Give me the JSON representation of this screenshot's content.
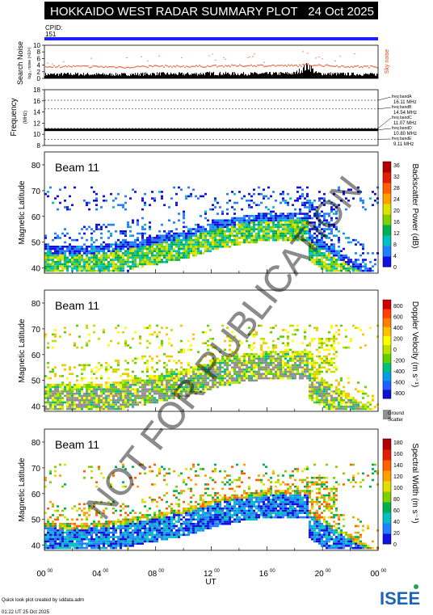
{
  "header": {
    "title": "HOKKAIDO WEST RADAR SUMMARY PLOT",
    "date": "24 Oct 2025",
    "cpid_label": "CPID:",
    "cpid_value": "151"
  },
  "watermark": "NOT FOR PUBLICATION",
  "footer": {
    "credit": "Quick look plot created by sddata.adm",
    "generated": "01:22 UT 25 Oct 2025",
    "logo_text": "ISEE",
    "x_axis_label": "UT"
  },
  "colors": {
    "title_bar": "#000000",
    "cpid_bar": "#2020ff",
    "noise_line": "#e04010",
    "ground_scatter": "#909090"
  },
  "chart_data": [
    {
      "type": "area",
      "panel": "search-noise",
      "ylabel": "Search Noise",
      "ylabel_sub": "log₁₀ noise (×10⁴)",
      "legend": "Sky noise",
      "yticks": [
        "0",
        "2",
        "4",
        "6",
        "8",
        "10"
      ],
      "ylim": [
        0,
        10
      ],
      "x": [
        0,
        2,
        4,
        6,
        8,
        10,
        12,
        14,
        16,
        18,
        19,
        19.5,
        20,
        22,
        24
      ],
      "series": [
        {
          "name": "Sky noise",
          "values": [
            3.6,
            3.6,
            3.5,
            3.4,
            3.7,
            3.6,
            3.7,
            3.8,
            3.9,
            3.8,
            4.1,
            4.0,
            3.9,
            3.6,
            3.5
          ]
        },
        {
          "name": "",
          "values": [
            1.2,
            1.3,
            1.2,
            1.2,
            1.4,
            1.3,
            1.5,
            1.4,
            1.4,
            1.5,
            3.8,
            1.6,
            1.4,
            1.3,
            1.2
          ]
        }
      ]
    },
    {
      "type": "line",
      "panel": "frequency",
      "ylabel": "Frequency",
      "yunit": "(MHz)",
      "yticks": [
        "8",
        "10",
        "12",
        "14",
        "16",
        "18"
      ],
      "ylim": [
        8,
        18
      ],
      "operating_frequency_mhz": 10.8,
      "bands": [
        {
          "label": "freq bandA",
          "value": "16.11 MHz"
        },
        {
          "label": "freq bandB",
          "value": "14.54 MHz"
        },
        {
          "label": "freq bandC",
          "value": "11.07 MHz"
        },
        {
          "label": "freq bandD",
          "value": "10.80 MHz"
        },
        {
          "label": "freq bandE",
          "value": "9.11 MHz"
        }
      ]
    },
    {
      "type": "heatmap",
      "panel": "power",
      "beam_label": "Beam 11",
      "ylabel": "Magnetic Latitude",
      "yticks": [
        "40",
        "50",
        "60",
        "70",
        "80"
      ],
      "ylim": [
        38,
        85
      ],
      "colorbar_label": "Backscatter Power (dB)",
      "colorbar_ticks": [
        "0",
        "4",
        "8",
        "12",
        "16",
        "20",
        "24",
        "28",
        "32",
        "36"
      ],
      "colorbar_colors": [
        "#1010e0",
        "#2080ff",
        "#00c0c0",
        "#00b050",
        "#80d000",
        "#e0e000",
        "#ffa000",
        "#ff6000",
        "#e02000",
        "#b00000"
      ]
    },
    {
      "type": "heatmap",
      "panel": "velocity",
      "beam_label": "Beam 11",
      "ylabel": "Magnetic Latitude",
      "yticks": [
        "40",
        "50",
        "60",
        "70",
        "80"
      ],
      "ylim": [
        38,
        85
      ],
      "colorbar_label": "Doppler Velocity (m s⁻¹)",
      "colorbar_ticks": [
        "800",
        "600",
        "400",
        "200",
        "0",
        "-200",
        "-400",
        "-600",
        "-800"
      ],
      "colorbar_colors": [
        "#1010d0",
        "#2060ff",
        "#00a0e0",
        "#00c080",
        "#60d000",
        "#c0e000",
        "#ffff00",
        "#ffc000",
        "#ff8000",
        "#ff4000",
        "#d00000"
      ],
      "ground_scatter_label": "Ground Scatter"
    },
    {
      "type": "heatmap",
      "panel": "width",
      "beam_label": "Beam 11",
      "ylabel": "Magnetic Latitude",
      "yticks": [
        "40",
        "50",
        "60",
        "70",
        "80"
      ],
      "ylim": [
        38,
        85
      ],
      "colorbar_label": "Spectral Width (m s⁻¹)",
      "colorbar_ticks": [
        "0",
        "20",
        "40",
        "60",
        "80",
        "100",
        "120",
        "140",
        "160",
        "180"
      ],
      "colorbar_colors": [
        "#1010e0",
        "#2080ff",
        "#00c0c0",
        "#00b050",
        "#80d000",
        "#e0e000",
        "#ffa000",
        "#ff6000",
        "#e02000",
        "#b00000"
      ]
    }
  ],
  "x_axis": {
    "ticks": [
      "00",
      "04",
      "08",
      "12",
      "16",
      "20",
      "00"
    ],
    "tick_sup": "00",
    "xlim_hours": [
      0,
      24
    ]
  }
}
